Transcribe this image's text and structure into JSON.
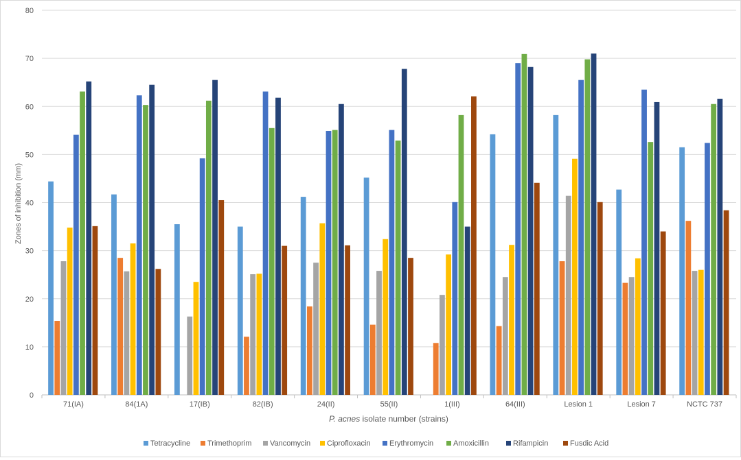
{
  "chart_data": {
    "type": "bar",
    "title": "",
    "xlabel_italic": "P. acnes",
    "xlabel_rest": " isolate number (strains)",
    "ylabel": "Zones of inhibition (mm)",
    "ylim": [
      0,
      80
    ],
    "yticks": [
      "0",
      "10",
      "20",
      "30",
      "40",
      "50",
      "60",
      "70",
      "80"
    ],
    "grid": true,
    "legend_position": "bottom",
    "categories": [
      "71(IA)",
      "84(1A)",
      "17(IB)",
      "82(IB)",
      "24(II)",
      "55(II)",
      "1(III)",
      "64(III)",
      "Lesion 1",
      "Lesion 7",
      "NCTC 737"
    ],
    "series": [
      {
        "name": "Tetracycline",
        "color": "#5B9BD5",
        "values": [
          44.4,
          41.7,
          35.5,
          35.0,
          41.2,
          45.2,
          0,
          54.2,
          58.2,
          42.7,
          51.5
        ]
      },
      {
        "name": "Trimethoprim",
        "color": "#ED7D31",
        "values": [
          15.4,
          28.5,
          0,
          12.1,
          18.4,
          14.6,
          10.8,
          14.3,
          27.8,
          23.3,
          36.2
        ]
      },
      {
        "name": "Vancomycin",
        "color": "#A5A5A5",
        "values": [
          27.8,
          25.7,
          16.3,
          25.1,
          27.5,
          25.8,
          20.8,
          24.5,
          41.4,
          24.5,
          25.8
        ]
      },
      {
        "name": "Ciprofloxacin",
        "color": "#FFC000",
        "values": [
          34.8,
          31.5,
          23.5,
          25.2,
          35.7,
          32.4,
          29.2,
          31.2,
          49.1,
          28.4,
          26.0
        ]
      },
      {
        "name": "Erythromycin",
        "color": "#4472C4",
        "values": [
          54.1,
          62.3,
          49.2,
          63.1,
          54.9,
          55.1,
          40.1,
          69.0,
          65.5,
          63.5,
          52.4
        ]
      },
      {
        "name": "Amoxicillin",
        "color": "#70AD47",
        "values": [
          63.1,
          60.3,
          61.2,
          55.5,
          55.1,
          52.9,
          58.2,
          70.9,
          69.8,
          52.6,
          60.5
        ]
      },
      {
        "name": "Rifampicin",
        "color": "#264478",
        "values": [
          65.2,
          64.5,
          65.5,
          61.8,
          60.5,
          67.8,
          35.0,
          68.2,
          71.0,
          60.9,
          61.6
        ]
      },
      {
        "name": "Fusdic Acid",
        "color": "#9E480E",
        "values": [
          35.1,
          26.2,
          40.5,
          31.0,
          31.1,
          28.5,
          62.1,
          44.1,
          40.1,
          34.0,
          38.4
        ]
      }
    ]
  }
}
